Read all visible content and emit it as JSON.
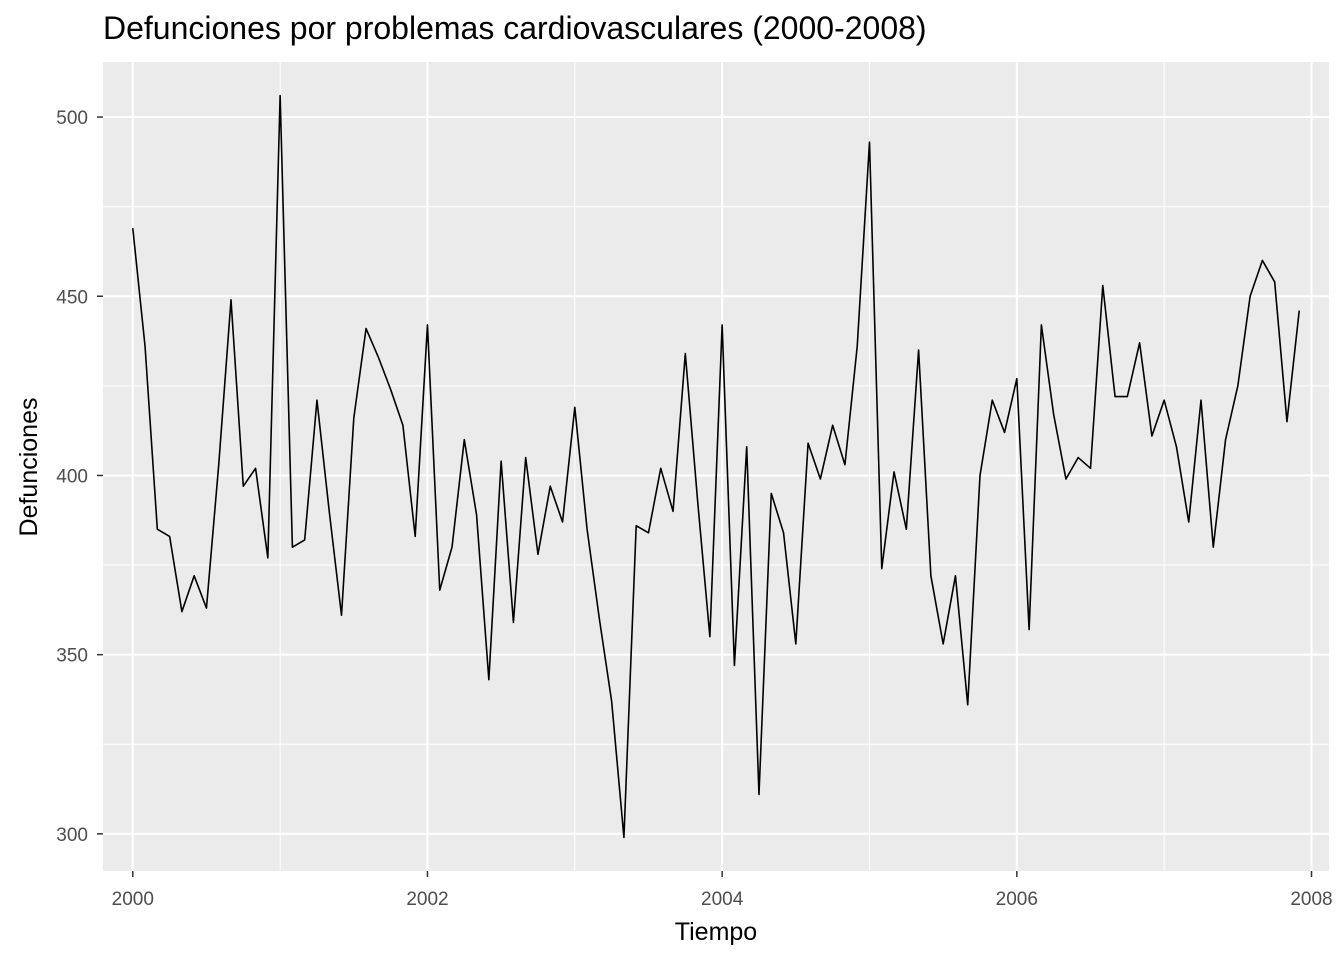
{
  "chart_data": {
    "type": "line",
    "title": "Defunciones por problemas cardiovasculares (2000-2008)",
    "xlabel": "Tiempo",
    "ylabel": "Defunciones",
    "xlim": [
      1999.7979,
      2008.1187
    ],
    "ylim": [
      289.64,
      515.36
    ],
    "x_ticks": [
      2000,
      2002,
      2004,
      2006,
      2008
    ],
    "x_tick_labels": [
      "2000",
      "2002",
      "2004",
      "2006",
      "2008"
    ],
    "y_ticks": [
      300,
      350,
      400,
      450,
      500
    ],
    "y_tick_labels": [
      "300",
      "350",
      "400",
      "450",
      "500"
    ],
    "grid": true,
    "legend": "none",
    "colors": {
      "panel": "#ebebeb",
      "grid": "#ffffff",
      "line": "#000000",
      "tick_text": "#4d4d4d"
    },
    "x_start": 2000,
    "frequency": 12,
    "series": [
      {
        "values": [
          469,
          436,
          385,
          383,
          362,
          372,
          363,
          403,
          449,
          397,
          402,
          377,
          506,
          380,
          382,
          421,
          390,
          361,
          416,
          441,
          433,
          424,
          414,
          383,
          442,
          368,
          380,
          410,
          389,
          343,
          404,
          359,
          405,
          378,
          397,
          387,
          419,
          385,
          360,
          337,
          299,
          386,
          384,
          402,
          390,
          434,
          393,
          355,
          442,
          347,
          408,
          311,
          395,
          384,
          353,
          409,
          399,
          414,
          403,
          436,
          493,
          374,
          401,
          385,
          435,
          372,
          353,
          372,
          336,
          400,
          421,
          412,
          427,
          357,
          442,
          417,
          399,
          405,
          402,
          453,
          422,
          422,
          437,
          411,
          421,
          408,
          387,
          421,
          380,
          410,
          425,
          450,
          460,
          454,
          415,
          446
        ]
      }
    ]
  }
}
